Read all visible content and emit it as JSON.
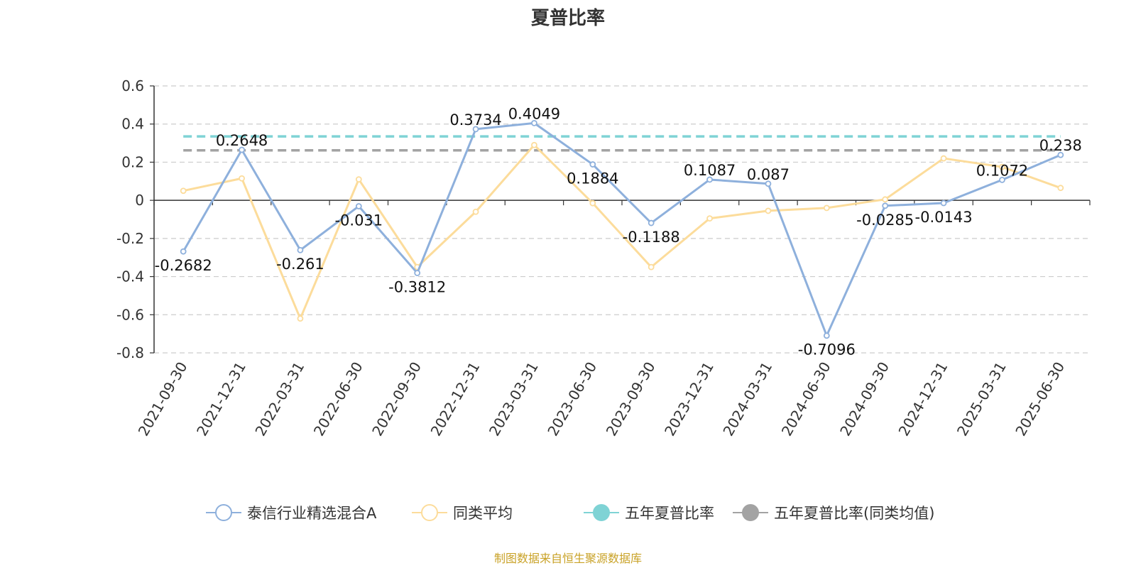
{
  "chart_data": {
    "type": "line",
    "title": "夏普比率",
    "xlabel": "",
    "ylabel": "",
    "ylim": [
      -0.8,
      0.6
    ],
    "yticks": [
      -0.8,
      -0.6,
      -0.4,
      -0.2,
      0,
      0.2,
      0.4,
      0.6
    ],
    "ytick_labels": [
      "-0.8",
      "-0.6",
      "-0.4",
      "-0.2",
      "0",
      "0.2",
      "0.4",
      "0.6"
    ],
    "grid": "horizontal dashed",
    "legend_position": "bottom-center",
    "categories": [
      "2021-09-30",
      "2021-12-31",
      "2022-03-31",
      "2022-06-30",
      "2022-09-30",
      "2022-12-31",
      "2023-03-31",
      "2023-06-30",
      "2023-09-30",
      "2023-12-31",
      "2024-03-31",
      "2024-06-30",
      "2024-09-30",
      "2024-12-31",
      "2025-03-31",
      "2025-06-30"
    ],
    "series": [
      {
        "name": "泰信行业精选混合A",
        "color": "#8eb0dc",
        "marker": "hollow-circle",
        "values": [
          -0.2682,
          0.2648,
          -0.261,
          -0.031,
          -0.3812,
          0.3734,
          0.4049,
          0.1884,
          -0.1188,
          0.1087,
          0.087,
          -0.7096,
          -0.0285,
          -0.0143,
          0.1072,
          0.238
        ],
        "data_labels": [
          "-0.2682",
          "0.2648",
          "-0.261",
          "-0.031",
          "-0.3812",
          "0.3734",
          "0.4049",
          "0.1884",
          "-0.1188",
          "0.1087",
          "0.087",
          "-0.7096",
          "-0.0285",
          "-0.0143",
          "0.1072",
          "0.238"
        ]
      },
      {
        "name": "同类平均",
        "color": "#fcdc9b",
        "marker": "hollow-circle",
        "values": [
          0.05,
          0.115,
          -0.62,
          0.11,
          -0.35,
          -0.06,
          0.29,
          -0.015,
          -0.35,
          -0.095,
          -0.055,
          -0.04,
          0.005,
          0.22,
          0.175,
          0.065
        ]
      },
      {
        "name": "五年夏普比率",
        "color": "#7fd3d5",
        "style": "dashed",
        "value": 0.335
      },
      {
        "name": "五年夏普比率(同类均值)",
        "color": "#a3a3a3",
        "style": "dashed",
        "value": 0.262
      }
    ]
  },
  "footer": {
    "source": "制图数据来自恒生聚源数据库"
  }
}
